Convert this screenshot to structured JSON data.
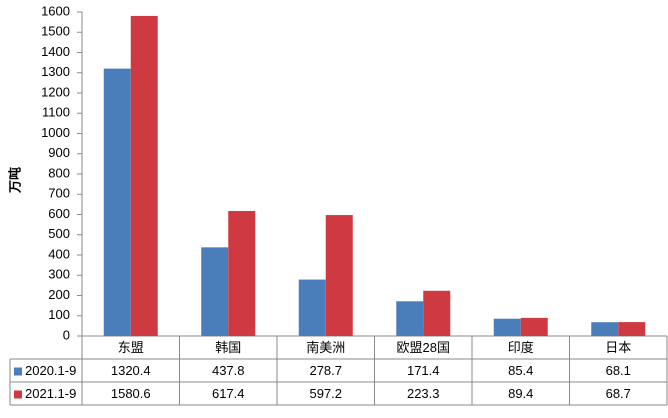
{
  "chart_data": {
    "type": "bar",
    "y_label": "万吨",
    "categories": [
      "东盟",
      "韩国",
      "南美洲",
      "欧盟28国",
      "印度",
      "日本"
    ],
    "series": [
      {
        "name": "2020.1-9",
        "color": "#4a7ebb",
        "values": [
          1320.4,
          437.8,
          278.7,
          171.4,
          85.4,
          68.1
        ]
      },
      {
        "name": "2021.1-9",
        "color": "#cf3a42",
        "values": [
          1580.6,
          617.4,
          597.2,
          223.3,
          89.4,
          68.7
        ]
      }
    ],
    "ylim": [
      0,
      1600
    ],
    "yticks": [
      0,
      100,
      200,
      300,
      400,
      500,
      600,
      700,
      800,
      900,
      1000,
      1100,
      1200,
      1300,
      1400,
      1500,
      1600
    ],
    "grid": false,
    "data_table": true
  }
}
